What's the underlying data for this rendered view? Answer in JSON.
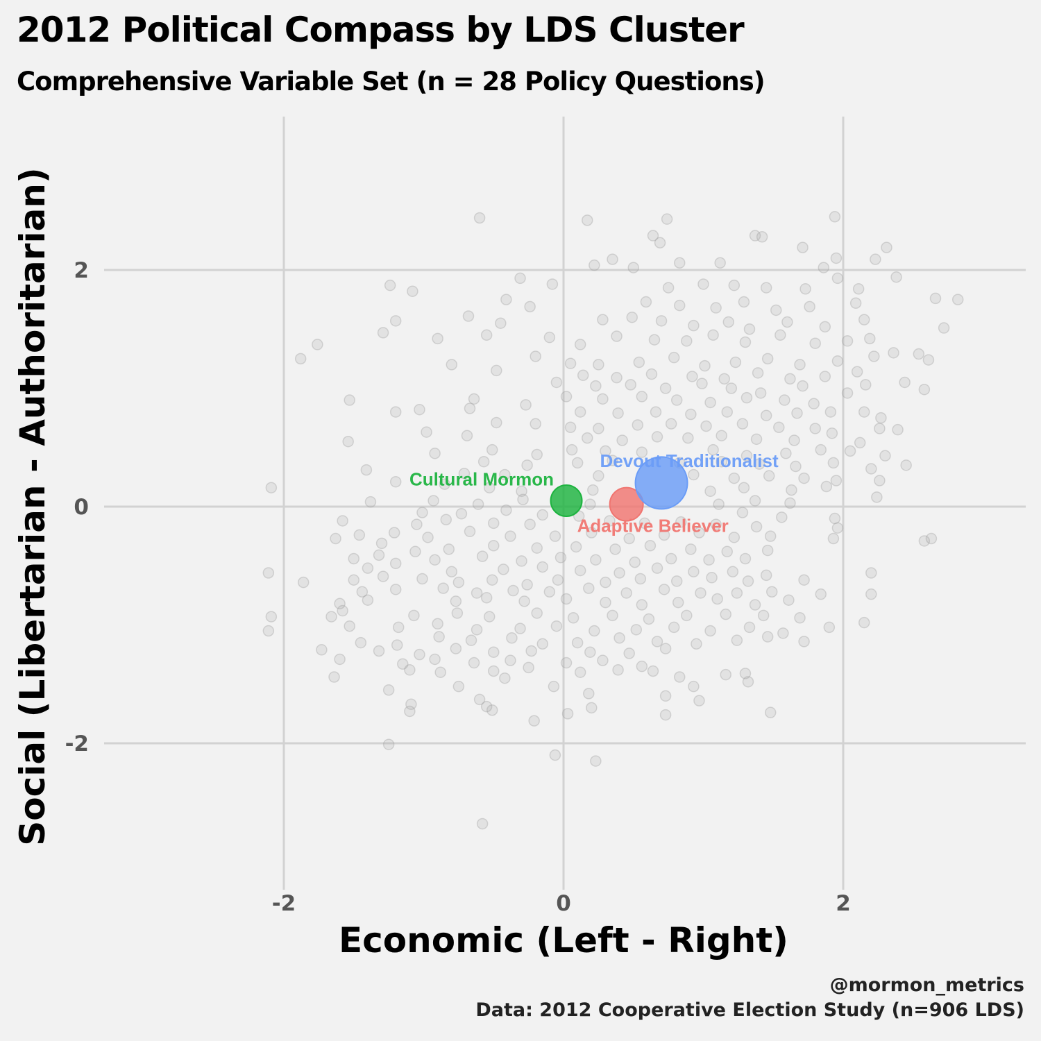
{
  "header": {
    "title": "2012 Political Compass by LDS Cluster",
    "subtitle": "Comprehensive Variable Set (n = 28 Policy Questions)"
  },
  "footer": {
    "handle": "@mormon_metrics",
    "source": "Data: 2012 Cooperative Election Study (n=906 LDS)"
  },
  "chart_data": {
    "type": "scatter",
    "xlabel": "Economic (Left - Right)",
    "ylabel": "Social (Libertarian - Authoritarian)",
    "xlim": [
      -2.0,
      3.3
    ],
    "ylim": [
      -3.3,
      2.2
    ],
    "xticks": [
      -2,
      0,
      2
    ],
    "yticks": [
      -2,
      0,
      2
    ],
    "xtick_labels": [
      "-2",
      "0",
      "2"
    ],
    "ytick_labels": [
      "-2",
      "0",
      "2"
    ],
    "grid": true,
    "background": "#f2f2f2",
    "respondent_point_color": "#9a9a9a",
    "cluster_centroids": [
      {
        "name": "Cultural Mormon",
        "x": 0.02,
        "y": 0.05,
        "relative_size": 0.75,
        "color": "#1db33f"
      },
      {
        "name": "Adaptive Believer",
        "x": 0.45,
        "y": 0.02,
        "relative_size": 0.8,
        "color": "#f07570"
      },
      {
        "name": "Devout Traditionalist",
        "x": 0.7,
        "y": 0.2,
        "relative_size": 1.25,
        "color": "#6a9cf7"
      }
    ],
    "respondents": [
      [
        -0.6,
        2.44
      ],
      [
        0.17,
        2.42
      ],
      [
        0.74,
        2.43
      ],
      [
        1.94,
        2.45
      ],
      [
        0.64,
        2.29
      ],
      [
        1.37,
        2.29
      ],
      [
        1.42,
        2.28
      ],
      [
        1.71,
        2.19
      ],
      [
        2.31,
        2.19
      ],
      [
        2.23,
        2.09
      ],
      [
        0.69,
        2.23
      ],
      [
        0.35,
        2.09
      ],
      [
        0.83,
        2.06
      ],
      [
        1.12,
        2.06
      ],
      [
        1.95,
        2.1
      ],
      [
        0.22,
        2.04
      ],
      [
        0.5,
        2.02
      ],
      [
        1.86,
        2.02
      ],
      [
        2.38,
        1.94
      ],
      [
        1.96,
        1.93
      ],
      [
        -0.31,
        1.93
      ],
      [
        -0.08,
        1.88
      ],
      [
        -1.24,
        1.87
      ],
      [
        -1.08,
        1.82
      ],
      [
        0.75,
        1.85
      ],
      [
        1.0,
        1.88
      ],
      [
        1.22,
        1.87
      ],
      [
        1.45,
        1.85
      ],
      [
        1.73,
        1.84
      ],
      [
        2.11,
        1.84
      ],
      [
        -0.41,
        1.75
      ],
      [
        -0.24,
        1.69
      ],
      [
        0.59,
        1.73
      ],
      [
        0.83,
        1.7
      ],
      [
        1.09,
        1.68
      ],
      [
        1.29,
        1.73
      ],
      [
        1.52,
        1.66
      ],
      [
        1.76,
        1.69
      ],
      [
        2.09,
        1.72
      ],
      [
        2.82,
        1.75
      ],
      [
        2.66,
        1.76
      ],
      [
        -0.68,
        1.61
      ],
      [
        -0.45,
        1.55
      ],
      [
        -1.2,
        1.57
      ],
      [
        -1.29,
        1.47
      ],
      [
        0.28,
        1.58
      ],
      [
        0.49,
        1.6
      ],
      [
        0.7,
        1.57
      ],
      [
        0.93,
        1.53
      ],
      [
        1.18,
        1.56
      ],
      [
        1.33,
        1.5
      ],
      [
        1.6,
        1.56
      ],
      [
        1.87,
        1.52
      ],
      [
        2.15,
        1.58
      ],
      [
        2.72,
        1.51
      ],
      [
        -0.55,
        1.45
      ],
      [
        -0.9,
        1.42
      ],
      [
        -1.76,
        1.37
      ],
      [
        -0.1,
        1.43
      ],
      [
        0.12,
        1.37
      ],
      [
        0.38,
        1.44
      ],
      [
        0.65,
        1.41
      ],
      [
        0.88,
        1.4
      ],
      [
        1.07,
        1.45
      ],
      [
        1.3,
        1.39
      ],
      [
        1.55,
        1.45
      ],
      [
        1.8,
        1.38
      ],
      [
        2.03,
        1.4
      ],
      [
        2.19,
        1.42
      ],
      [
        2.36,
        1.3
      ],
      [
        -1.88,
        1.25
      ],
      [
        -0.8,
        1.2
      ],
      [
        -0.2,
        1.27
      ],
      [
        0.05,
        1.21
      ],
      [
        0.25,
        1.2
      ],
      [
        0.54,
        1.22
      ],
      [
        0.79,
        1.26
      ],
      [
        1.01,
        1.19
      ],
      [
        1.23,
        1.22
      ],
      [
        1.46,
        1.25
      ],
      [
        1.69,
        1.2
      ],
      [
        1.96,
        1.23
      ],
      [
        2.22,
        1.27
      ],
      [
        2.54,
        1.29
      ],
      [
        2.61,
        1.24
      ],
      [
        -0.48,
        1.15
      ],
      [
        0.14,
        1.11
      ],
      [
        0.38,
        1.09
      ],
      [
        0.63,
        1.12
      ],
      [
        0.92,
        1.1
      ],
      [
        1.15,
        1.08
      ],
      [
        1.39,
        1.13
      ],
      [
        1.62,
        1.08
      ],
      [
        1.87,
        1.1
      ],
      [
        2.1,
        1.14
      ],
      [
        -0.05,
        1.05
      ],
      [
        0.23,
        1.02
      ],
      [
        0.48,
        1.03
      ],
      [
        0.73,
        1.0
      ],
      [
        0.99,
        1.04
      ],
      [
        1.2,
        1.0
      ],
      [
        1.41,
        0.96
      ],
      [
        1.71,
        1.02
      ],
      [
        2.16,
        1.03
      ],
      [
        2.44,
        1.05
      ],
      [
        -1.53,
        0.9
      ],
      [
        -0.64,
        0.91
      ],
      [
        0.02,
        0.93
      ],
      [
        0.28,
        0.91
      ],
      [
        0.56,
        0.93
      ],
      [
        0.81,
        0.9
      ],
      [
        1.05,
        0.88
      ],
      [
        1.31,
        0.92
      ],
      [
        1.58,
        0.9
      ],
      [
        1.79,
        0.87
      ],
      [
        2.03,
        0.96
      ],
      [
        2.58,
        0.99
      ],
      [
        -0.67,
        0.83
      ],
      [
        -1.2,
        0.8
      ],
      [
        -1.03,
        0.82
      ],
      [
        -0.27,
        0.86
      ],
      [
        0.12,
        0.8
      ],
      [
        0.39,
        0.79
      ],
      [
        0.66,
        0.8
      ],
      [
        0.91,
        0.78
      ],
      [
        1.17,
        0.8
      ],
      [
        1.45,
        0.77
      ],
      [
        1.67,
        0.79
      ],
      [
        1.91,
        0.8
      ],
      [
        2.15,
        0.8
      ],
      [
        2.27,
        0.75
      ],
      [
        -0.48,
        0.71
      ],
      [
        -0.2,
        0.7
      ],
      [
        0.05,
        0.67
      ],
      [
        0.25,
        0.66
      ],
      [
        0.53,
        0.69
      ],
      [
        0.77,
        0.7
      ],
      [
        1.02,
        0.68
      ],
      [
        1.28,
        0.7
      ],
      [
        1.54,
        0.67
      ],
      [
        1.8,
        0.66
      ],
      [
        2.26,
        0.66
      ],
      [
        2.39,
        0.65
      ],
      [
        -0.98,
        0.63
      ],
      [
        -0.69,
        0.6
      ],
      [
        0.17,
        0.58
      ],
      [
        0.42,
        0.56
      ],
      [
        0.67,
        0.59
      ],
      [
        0.89,
        0.58
      ],
      [
        1.13,
        0.6
      ],
      [
        1.38,
        0.57
      ],
      [
        1.65,
        0.56
      ],
      [
        1.92,
        0.62
      ],
      [
        2.12,
        0.54
      ],
      [
        -1.54,
        0.55
      ],
      [
        -0.92,
        0.45
      ],
      [
        -0.51,
        0.48
      ],
      [
        -0.19,
        0.44
      ],
      [
        0.06,
        0.48
      ],
      [
        0.3,
        0.47
      ],
      [
        0.56,
        0.46
      ],
      [
        1.07,
        0.48
      ],
      [
        1.31,
        0.43
      ],
      [
        1.59,
        0.45
      ],
      [
        1.84,
        0.48
      ],
      [
        2.05,
        0.47
      ],
      [
        2.3,
        0.43
      ],
      [
        -0.57,
        0.38
      ],
      [
        -0.26,
        0.35
      ],
      [
        0.1,
        0.37
      ],
      [
        0.35,
        0.39
      ],
      [
        0.83,
        0.37
      ],
      [
        1.13,
        0.38
      ],
      [
        1.4,
        0.36
      ],
      [
        1.66,
        0.34
      ],
      [
        1.93,
        0.37
      ],
      [
        2.2,
        0.32
      ],
      [
        2.45,
        0.35
      ],
      [
        -1.41,
        0.31
      ],
      [
        -0.71,
        0.28
      ],
      [
        -0.42,
        0.27
      ],
      [
        0.25,
        0.26
      ],
      [
        0.93,
        0.27
      ],
      [
        1.22,
        0.24
      ],
      [
        1.47,
        0.26
      ],
      [
        1.72,
        0.24
      ],
      [
        1.95,
        0.22
      ],
      [
        2.26,
        0.22
      ],
      [
        -2.09,
        0.16
      ],
      [
        -1.2,
        0.21
      ],
      [
        -0.85,
        0.19
      ],
      [
        -0.53,
        0.16
      ],
      [
        -0.3,
        0.13
      ],
      [
        0.21,
        0.14
      ],
      [
        1.05,
        0.13
      ],
      [
        1.29,
        0.16
      ],
      [
        1.63,
        0.14
      ],
      [
        1.88,
        0.17
      ],
      [
        -1.38,
        0.04
      ],
      [
        -0.93,
        0.05
      ],
      [
        -0.61,
        0.02
      ],
      [
        -0.29,
        0.06
      ],
      [
        0.19,
        0.02
      ],
      [
        1.11,
        0.02
      ],
      [
        1.37,
        0.05
      ],
      [
        1.62,
        0.03
      ],
      [
        2.24,
        0.08
      ],
      [
        -1.01,
        -0.05
      ],
      [
        -0.73,
        -0.06
      ],
      [
        -0.41,
        -0.03
      ],
      [
        -0.15,
        -0.07
      ],
      [
        0.11,
        -0.08
      ],
      [
        1.28,
        -0.05
      ],
      [
        1.56,
        -0.09
      ],
      [
        1.94,
        -0.1
      ],
      [
        -1.58,
        -0.12
      ],
      [
        -1.05,
        -0.15
      ],
      [
        -0.84,
        -0.11
      ],
      [
        -0.5,
        -0.14
      ],
      [
        -0.24,
        -0.15
      ],
      [
        0.33,
        -0.12
      ],
      [
        0.58,
        -0.14
      ],
      [
        0.84,
        -0.13
      ],
      [
        1.09,
        -0.15
      ],
      [
        1.38,
        -0.17
      ],
      [
        1.96,
        -0.18
      ],
      [
        -1.46,
        -0.24
      ],
      [
        -1.21,
        -0.22
      ],
      [
        -0.97,
        -0.26
      ],
      [
        -0.67,
        -0.21
      ],
      [
        -0.38,
        -0.25
      ],
      [
        -0.06,
        -0.25
      ],
      [
        0.2,
        -0.22
      ],
      [
        0.47,
        -0.27
      ],
      [
        0.72,
        -0.24
      ],
      [
        0.97,
        -0.22
      ],
      [
        1.22,
        -0.26
      ],
      [
        1.48,
        -0.25
      ],
      [
        1.93,
        -0.27
      ],
      [
        2.63,
        -0.27
      ],
      [
        2.58,
        -0.29
      ],
      [
        -1.63,
        -0.27
      ],
      [
        -1.3,
        -0.31
      ],
      [
        -1.06,
        -0.38
      ],
      [
        -0.82,
        -0.36
      ],
      [
        -0.5,
        -0.33
      ],
      [
        -0.19,
        -0.35
      ],
      [
        0.09,
        -0.34
      ],
      [
        0.37,
        -0.36
      ],
      [
        0.62,
        -0.33
      ],
      [
        0.91,
        -0.36
      ],
      [
        1.17,
        -0.38
      ],
      [
        1.46,
        -0.37
      ],
      [
        -1.5,
        -0.44
      ],
      [
        -1.32,
        -0.41
      ],
      [
        -0.92,
        -0.45
      ],
      [
        -0.58,
        -0.42
      ],
      [
        -0.3,
        -0.46
      ],
      [
        -0.02,
        -0.43
      ],
      [
        0.23,
        -0.45
      ],
      [
        0.51,
        -0.47
      ],
      [
        0.77,
        -0.44
      ],
      [
        1.04,
        -0.45
      ],
      [
        1.3,
        -0.44
      ],
      [
        -1.4,
        -0.52
      ],
      [
        -1.2,
        -0.48
      ],
      [
        -0.8,
        -0.55
      ],
      [
        -0.43,
        -0.53
      ],
      [
        -0.15,
        -0.51
      ],
      [
        0.12,
        -0.54
      ],
      [
        0.4,
        -0.56
      ],
      [
        0.67,
        -0.52
      ],
      [
        0.93,
        -0.55
      ],
      [
        1.21,
        -0.55
      ],
      [
        1.45,
        -0.58
      ],
      [
        2.2,
        -0.56
      ],
      [
        -2.11,
        -0.56
      ],
      [
        -1.5,
        -0.62
      ],
      [
        -1.29,
        -0.59
      ],
      [
        -1.01,
        -0.61
      ],
      [
        -0.75,
        -0.64
      ],
      [
        -0.51,
        -0.62
      ],
      [
        -0.26,
        -0.66
      ],
      [
        -0.04,
        -0.62
      ],
      [
        0.3,
        -0.64
      ],
      [
        0.55,
        -0.61
      ],
      [
        0.81,
        -0.63
      ],
      [
        1.06,
        -0.6
      ],
      [
        1.32,
        -0.63
      ],
      [
        1.72,
        -0.62
      ],
      [
        -1.86,
        -0.64
      ],
      [
        -1.44,
        -0.72
      ],
      [
        -1.2,
        -0.7
      ],
      [
        -0.86,
        -0.69
      ],
      [
        -0.62,
        -0.73
      ],
      [
        -0.36,
        -0.71
      ],
      [
        -0.1,
        -0.72
      ],
      [
        0.18,
        -0.69
      ],
      [
        0.45,
        -0.73
      ],
      [
        0.72,
        -0.7
      ],
      [
        0.98,
        -0.73
      ],
      [
        1.24,
        -0.73
      ],
      [
        1.49,
        -0.72
      ],
      [
        1.84,
        -0.74
      ],
      [
        2.2,
        -0.74
      ],
      [
        -1.6,
        -0.82
      ],
      [
        -1.4,
        -0.79
      ],
      [
        -0.77,
        -0.8
      ],
      [
        -0.55,
        -0.77
      ],
      [
        -0.28,
        -0.8
      ],
      [
        0.02,
        -0.78
      ],
      [
        0.3,
        -0.81
      ],
      [
        0.56,
        -0.83
      ],
      [
        0.82,
        -0.81
      ],
      [
        1.1,
        -0.78
      ],
      [
        1.37,
        -0.83
      ],
      [
        1.61,
        -0.79
      ],
      [
        -2.09,
        -0.93
      ],
      [
        -1.66,
        -0.93
      ],
      [
        -1.58,
        -0.88
      ],
      [
        -1.07,
        -0.92
      ],
      [
        -0.76,
        -0.9
      ],
      [
        -0.53,
        -0.93
      ],
      [
        -0.19,
        -0.9
      ],
      [
        0.07,
        -0.94
      ],
      [
        0.35,
        -0.92
      ],
      [
        0.61,
        -0.95
      ],
      [
        0.88,
        -0.92
      ],
      [
        1.16,
        -0.91
      ],
      [
        1.43,
        -0.92
      ],
      [
        1.69,
        -0.94
      ],
      [
        2.15,
        -0.98
      ],
      [
        -1.53,
        -1.01
      ],
      [
        -1.18,
        -1.02
      ],
      [
        -0.9,
        -0.99
      ],
      [
        -0.62,
        -1.04
      ],
      [
        -0.31,
        -1.03
      ],
      [
        -0.05,
        -1.01
      ],
      [
        0.22,
        -1.05
      ],
      [
        0.52,
        -1.04
      ],
      [
        0.79,
        -1.02
      ],
      [
        1.05,
        -1.05
      ],
      [
        1.33,
        -1.02
      ],
      [
        1.57,
        -1.07
      ],
      [
        1.9,
        -1.02
      ],
      [
        -2.11,
        -1.05
      ],
      [
        -1.45,
        -1.15
      ],
      [
        -1.19,
        -1.17
      ],
      [
        -0.89,
        -1.1
      ],
      [
        -0.66,
        -1.13
      ],
      [
        -0.37,
        -1.11
      ],
      [
        -0.15,
        -1.16
      ],
      [
        0.1,
        -1.15
      ],
      [
        0.4,
        -1.11
      ],
      [
        0.67,
        -1.14
      ],
      [
        0.95,
        -1.16
      ],
      [
        1.24,
        -1.13
      ],
      [
        1.46,
        -1.1
      ],
      [
        1.72,
        -1.14
      ],
      [
        -1.73,
        -1.21
      ],
      [
        -1.32,
        -1.22
      ],
      [
        -1.03,
        -1.25
      ],
      [
        -0.77,
        -1.2
      ],
      [
        -0.5,
        -1.23
      ],
      [
        -0.23,
        -1.22
      ],
      [
        0.19,
        -1.23
      ],
      [
        0.47,
        -1.24
      ],
      [
        0.73,
        -1.2
      ],
      [
        -1.6,
        -1.29
      ],
      [
        -1.15,
        -1.33
      ],
      [
        -0.92,
        -1.29
      ],
      [
        -0.64,
        -1.32
      ],
      [
        -0.38,
        -1.3
      ],
      [
        0.02,
        -1.32
      ],
      [
        0.28,
        -1.3
      ],
      [
        0.56,
        -1.35
      ],
      [
        -1.1,
        -1.38
      ],
      [
        -0.88,
        -1.4
      ],
      [
        -0.5,
        -1.39
      ],
      [
        -0.25,
        -1.36
      ],
      [
        0.12,
        -1.4
      ],
      [
        0.39,
        -1.38
      ],
      [
        0.64,
        -1.39
      ],
      [
        1.16,
        -1.42
      ],
      [
        1.3,
        -1.41
      ],
      [
        -1.64,
        -1.44
      ],
      [
        -0.42,
        -1.45
      ],
      [
        0.83,
        -1.44
      ],
      [
        1.32,
        -1.48
      ],
      [
        -1.25,
        -1.55
      ],
      [
        -0.75,
        -1.52
      ],
      [
        -0.07,
        -1.52
      ],
      [
        0.18,
        -1.58
      ],
      [
        0.73,
        -1.6
      ],
      [
        0.97,
        -1.64
      ],
      [
        -0.6,
        -1.63
      ],
      [
        -0.55,
        -1.69
      ],
      [
        -1.09,
        -1.67
      ],
      [
        -0.51,
        -1.72
      ],
      [
        0.2,
        -1.7
      ],
      [
        0.73,
        -1.76
      ],
      [
        1.48,
        -1.74
      ],
      [
        -1.1,
        -1.73
      ],
      [
        -0.21,
        -1.81
      ],
      [
        0.03,
        -1.75
      ],
      [
        -1.25,
        -2.01
      ],
      [
        -0.06,
        -2.1
      ],
      [
        0.23,
        -2.15
      ],
      [
        -0.58,
        -2.68
      ],
      [
        0.93,
        -1.52
      ]
    ]
  }
}
